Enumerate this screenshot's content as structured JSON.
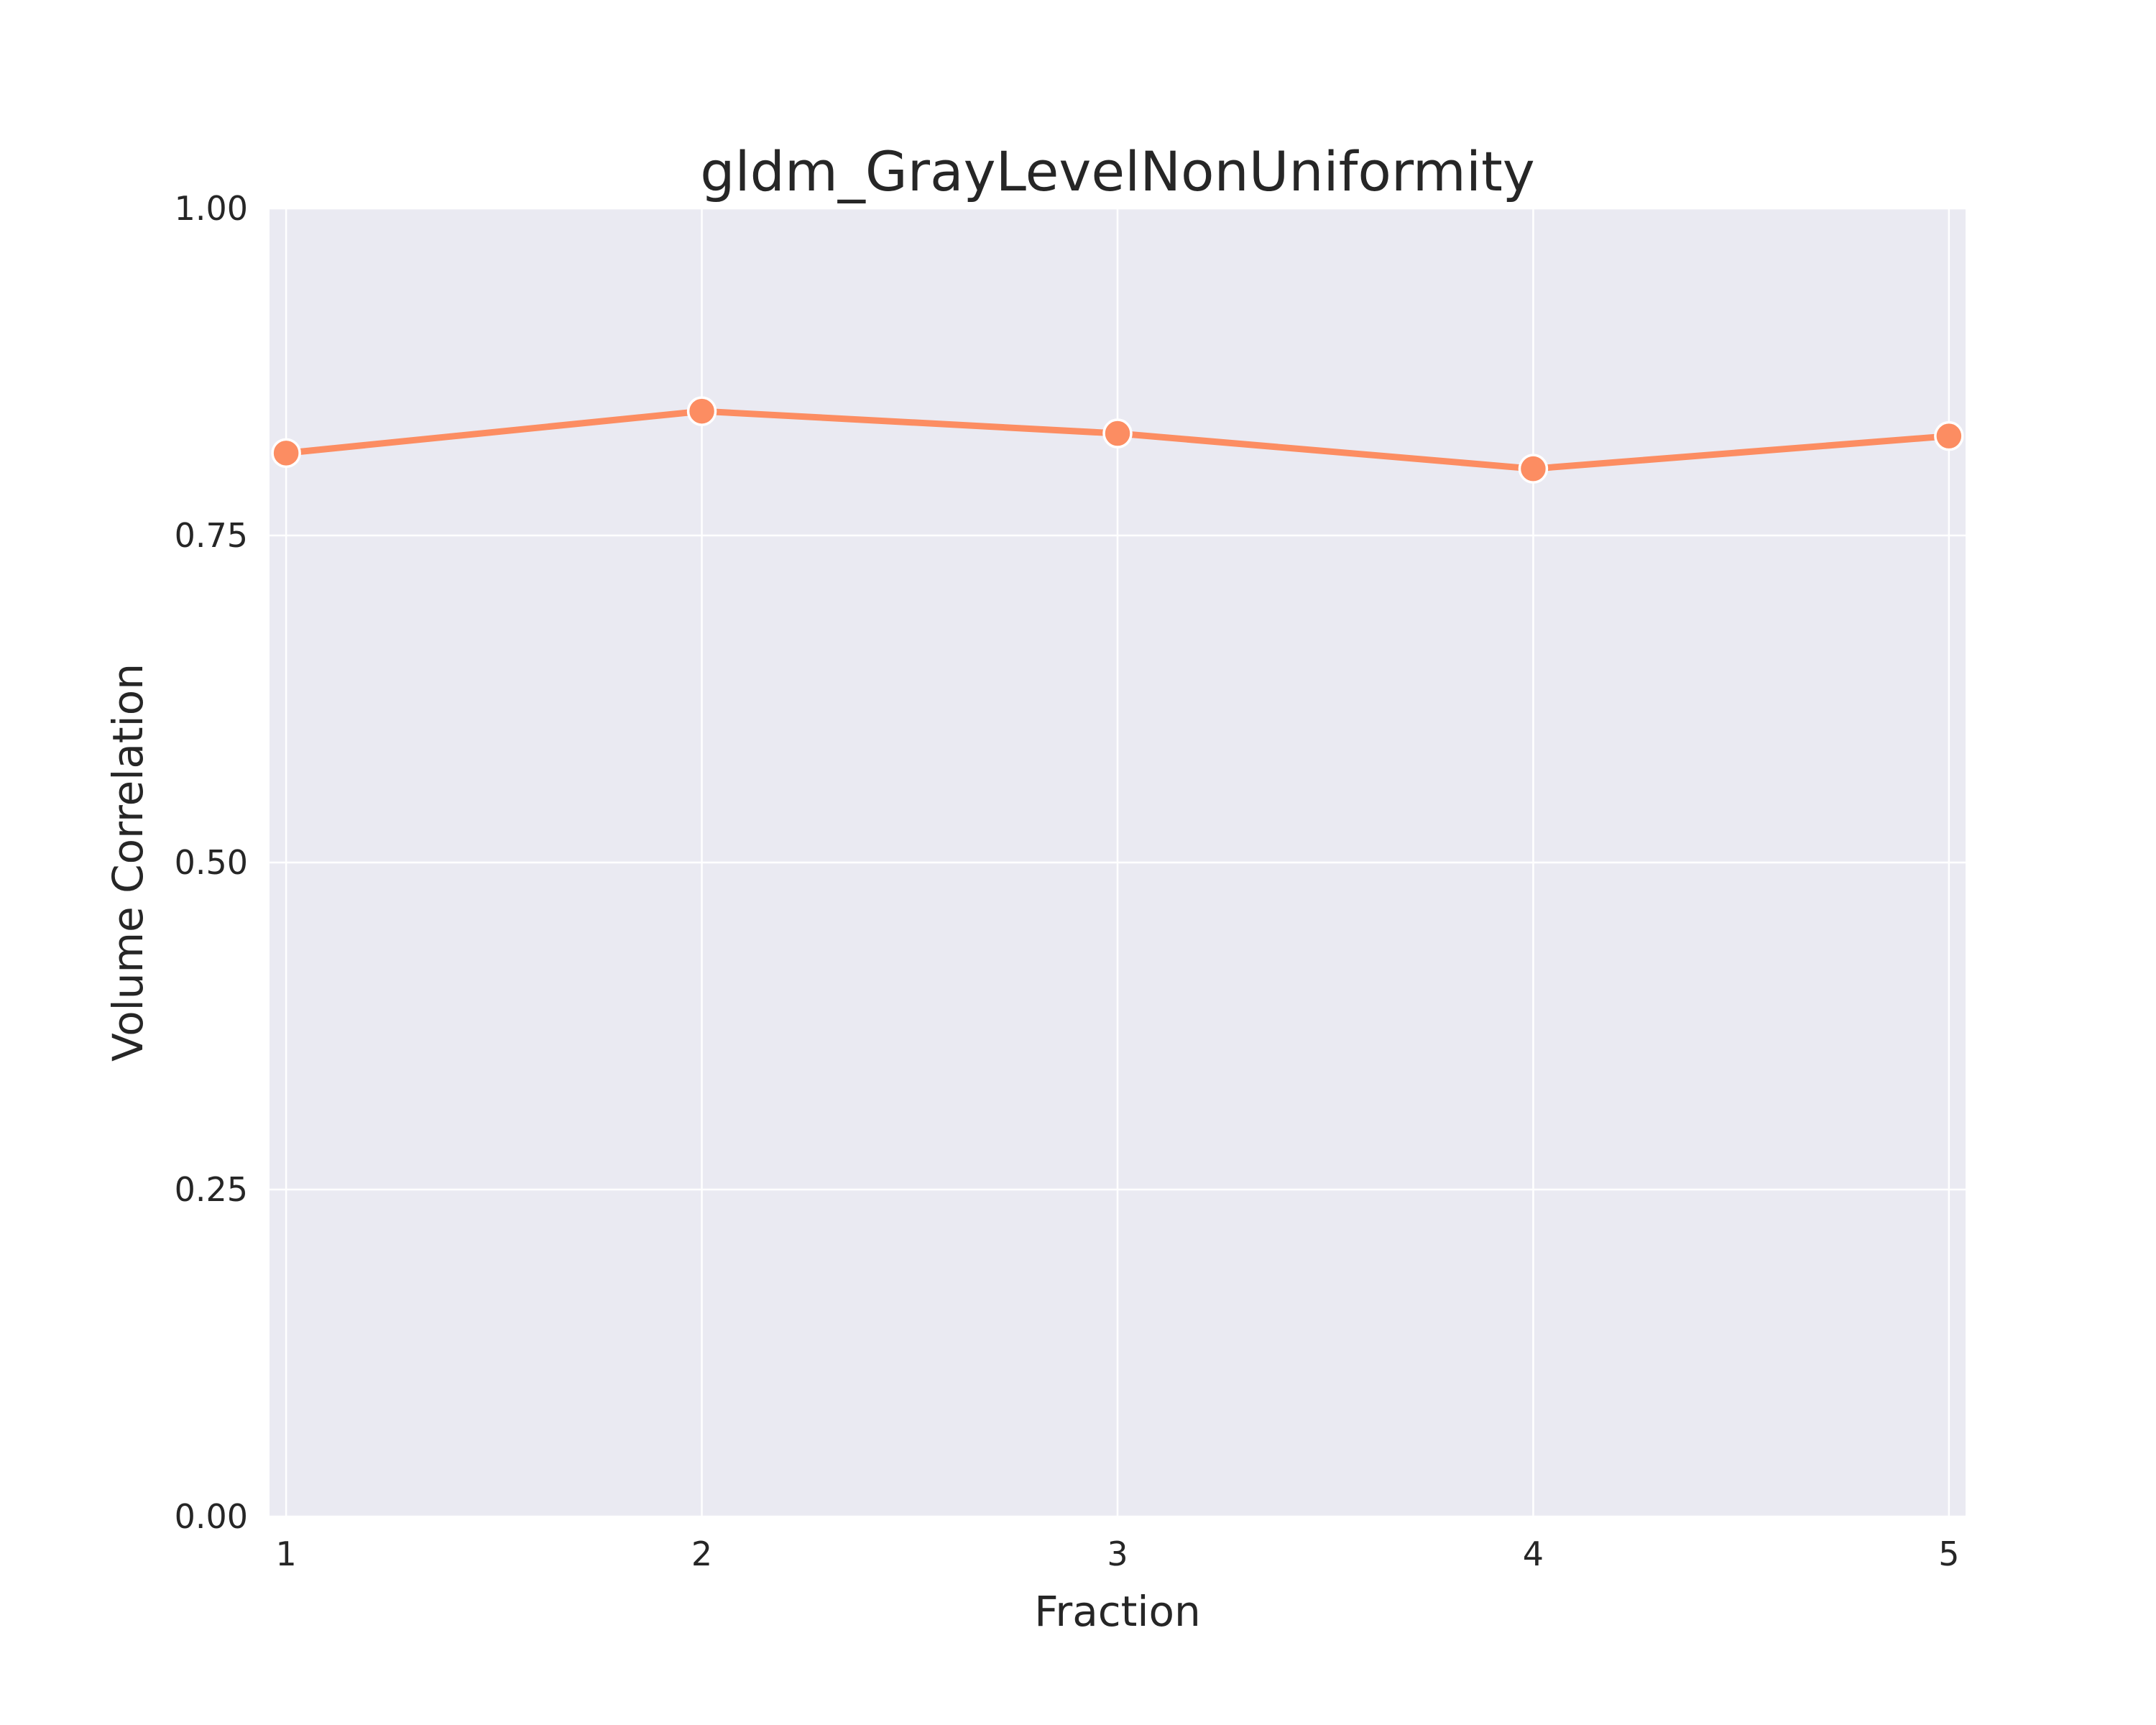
{
  "chart_data": {
    "type": "line",
    "title": "gldm_GrayLevelNonUniformity",
    "xlabel": "Fraction",
    "ylabel": "Volume Correlation",
    "x": [
      1,
      2,
      3,
      4,
      5
    ],
    "x_tick_labels": [
      "1",
      "2",
      "3",
      "4",
      "5"
    ],
    "y_tick_labels": [
      "0.00",
      "0.25",
      "0.50",
      "0.75",
      "1.00"
    ],
    "y_ticks": [
      0.0,
      0.25,
      0.5,
      0.75,
      1.0
    ],
    "xlim": [
      0.96,
      5.04
    ],
    "ylim": [
      0.0,
      1.0
    ],
    "grid": true,
    "series": [
      {
        "values": [
          0.813,
          0.845,
          0.828,
          0.801,
          0.826
        ],
        "color": "#fc8d62"
      }
    ],
    "colors": {
      "plot_background": "#eaeaf2",
      "grid": "#ffffff",
      "marker_edge": "#ffffff"
    }
  }
}
